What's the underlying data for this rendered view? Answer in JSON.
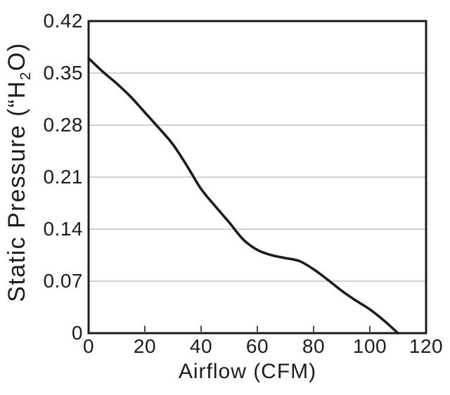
{
  "chart_data": {
    "type": "line",
    "xlabel": "Airflow (CFM)",
    "ylabel": "Static Pressure (“H2O)",
    "ylabel_parts": {
      "prefix": "Static Pressure (“H",
      "sub": "2",
      "suffix": "O)"
    },
    "xlim": [
      0,
      120
    ],
    "ylim": [
      0,
      0.42
    ],
    "x_ticks": [
      0,
      20,
      40,
      60,
      80,
      100,
      120
    ],
    "y_ticks": [
      0,
      0.07,
      0.14,
      0.21,
      0.28,
      0.35,
      0.42
    ],
    "x_tick_labels": [
      "0",
      "20",
      "40",
      "60",
      "80",
      "100",
      "120"
    ],
    "y_tick_labels": [
      "0",
      "0.07",
      "0.14",
      "0.21",
      "0.28",
      "0.35",
      "0.42"
    ],
    "grid": "horizontal",
    "legend": "none",
    "series": [
      {
        "name": "static-pressure-curve",
        "points": [
          [
            0,
            0.37
          ],
          [
            5,
            0.352
          ],
          [
            10,
            0.336
          ],
          [
            15,
            0.318
          ],
          [
            20,
            0.297
          ],
          [
            25,
            0.276
          ],
          [
            30,
            0.254
          ],
          [
            35,
            0.225
          ],
          [
            40,
            0.194
          ],
          [
            45,
            0.171
          ],
          [
            50,
            0.149
          ],
          [
            55,
            0.126
          ],
          [
            60,
            0.112
          ],
          [
            65,
            0.105
          ],
          [
            70,
            0.101
          ],
          [
            75,
            0.097
          ],
          [
            80,
            0.086
          ],
          [
            85,
            0.072
          ],
          [
            90,
            0.057
          ],
          [
            95,
            0.044
          ],
          [
            100,
            0.032
          ],
          [
            105,
            0.017
          ],
          [
            110,
            0
          ]
        ]
      }
    ],
    "colors": {
      "curve": "#1c1c1c",
      "grid": "#b5b5b5",
      "axis": "#1c1c1c",
      "tick": "#4a4a4a",
      "text": "#1c1c1c",
      "background": "#ffffff"
    }
  }
}
